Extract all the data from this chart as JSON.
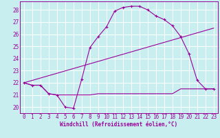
{
  "xlabel": "Windchill (Refroidissement éolien,°C)",
  "bg_color": "#c8eef0",
  "line_color": "#990099",
  "grid_color": "#ffffff",
  "xlim": [
    -0.5,
    23.5
  ],
  "ylim": [
    19.5,
    28.7
  ],
  "yticks": [
    20,
    21,
    22,
    23,
    24,
    25,
    26,
    27,
    28
  ],
  "xticks": [
    0,
    1,
    2,
    3,
    4,
    5,
    6,
    7,
    8,
    9,
    10,
    11,
    12,
    13,
    14,
    15,
    16,
    17,
    18,
    19,
    20,
    21,
    22,
    23
  ],
  "line1_x": [
    0,
    1,
    2,
    3,
    4,
    5,
    6,
    7,
    8,
    9,
    10,
    11,
    12,
    13,
    14,
    15,
    16,
    17,
    18,
    19,
    20,
    21,
    22,
    23
  ],
  "line1_y": [
    22.0,
    21.8,
    21.8,
    21.1,
    21.0,
    20.0,
    19.9,
    22.3,
    24.9,
    25.8,
    26.6,
    27.9,
    28.2,
    28.3,
    28.3,
    28.0,
    27.5,
    27.2,
    26.7,
    25.8,
    24.4,
    22.2,
    21.5,
    21.5
  ],
  "line2_x": [
    0,
    1,
    2,
    3,
    4,
    5,
    6,
    7,
    8,
    9,
    10,
    11,
    12,
    13,
    14,
    15,
    16,
    17,
    18,
    19,
    20,
    21,
    22,
    23
  ],
  "line2_y": [
    22.0,
    21.8,
    21.8,
    21.1,
    21.0,
    21.0,
    21.0,
    21.0,
    21.0,
    21.1,
    21.1,
    21.1,
    21.1,
    21.1,
    21.1,
    21.1,
    21.1,
    21.1,
    21.1,
    21.5,
    21.5,
    21.5,
    21.5,
    21.5
  ],
  "line3_x": [
    0,
    23
  ],
  "line3_y": [
    22.0,
    26.5
  ]
}
